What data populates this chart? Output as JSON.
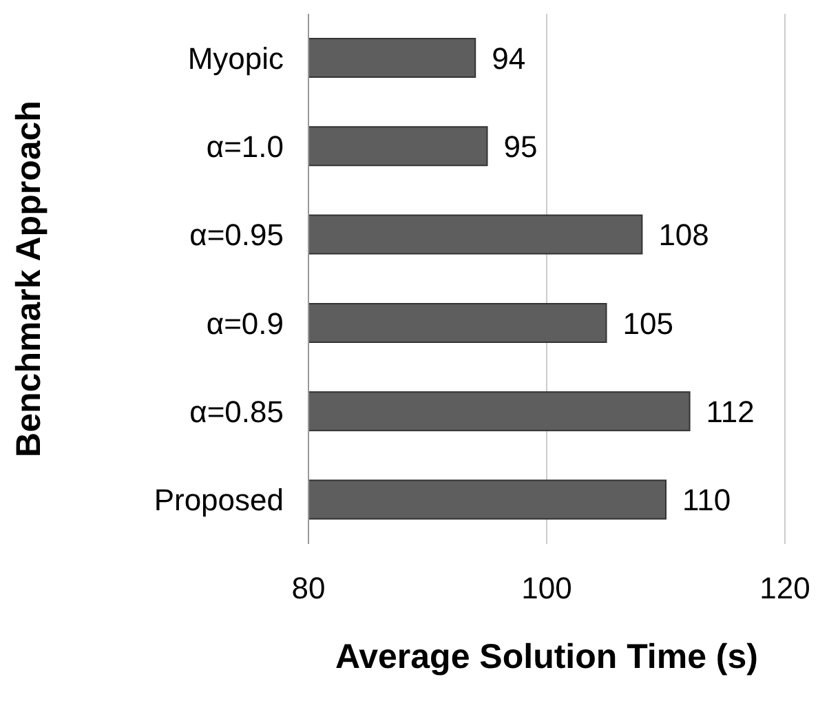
{
  "chart_data": {
    "type": "bar",
    "orientation": "horizontal",
    "xlabel": "Average Solution Time (s)",
    "ylabel": "Benchmark Approach",
    "categories": [
      "Myopic",
      "α=1.0",
      "α=0.95",
      "α=0.9",
      "α=0.85",
      "Proposed"
    ],
    "values": [
      94,
      95,
      108,
      105,
      112,
      110
    ],
    "color": "#5e5e5e",
    "xlim": [
      80,
      120
    ],
    "xticks": [
      80,
      100,
      120
    ],
    "grid": "x",
    "data_labels": true
  }
}
